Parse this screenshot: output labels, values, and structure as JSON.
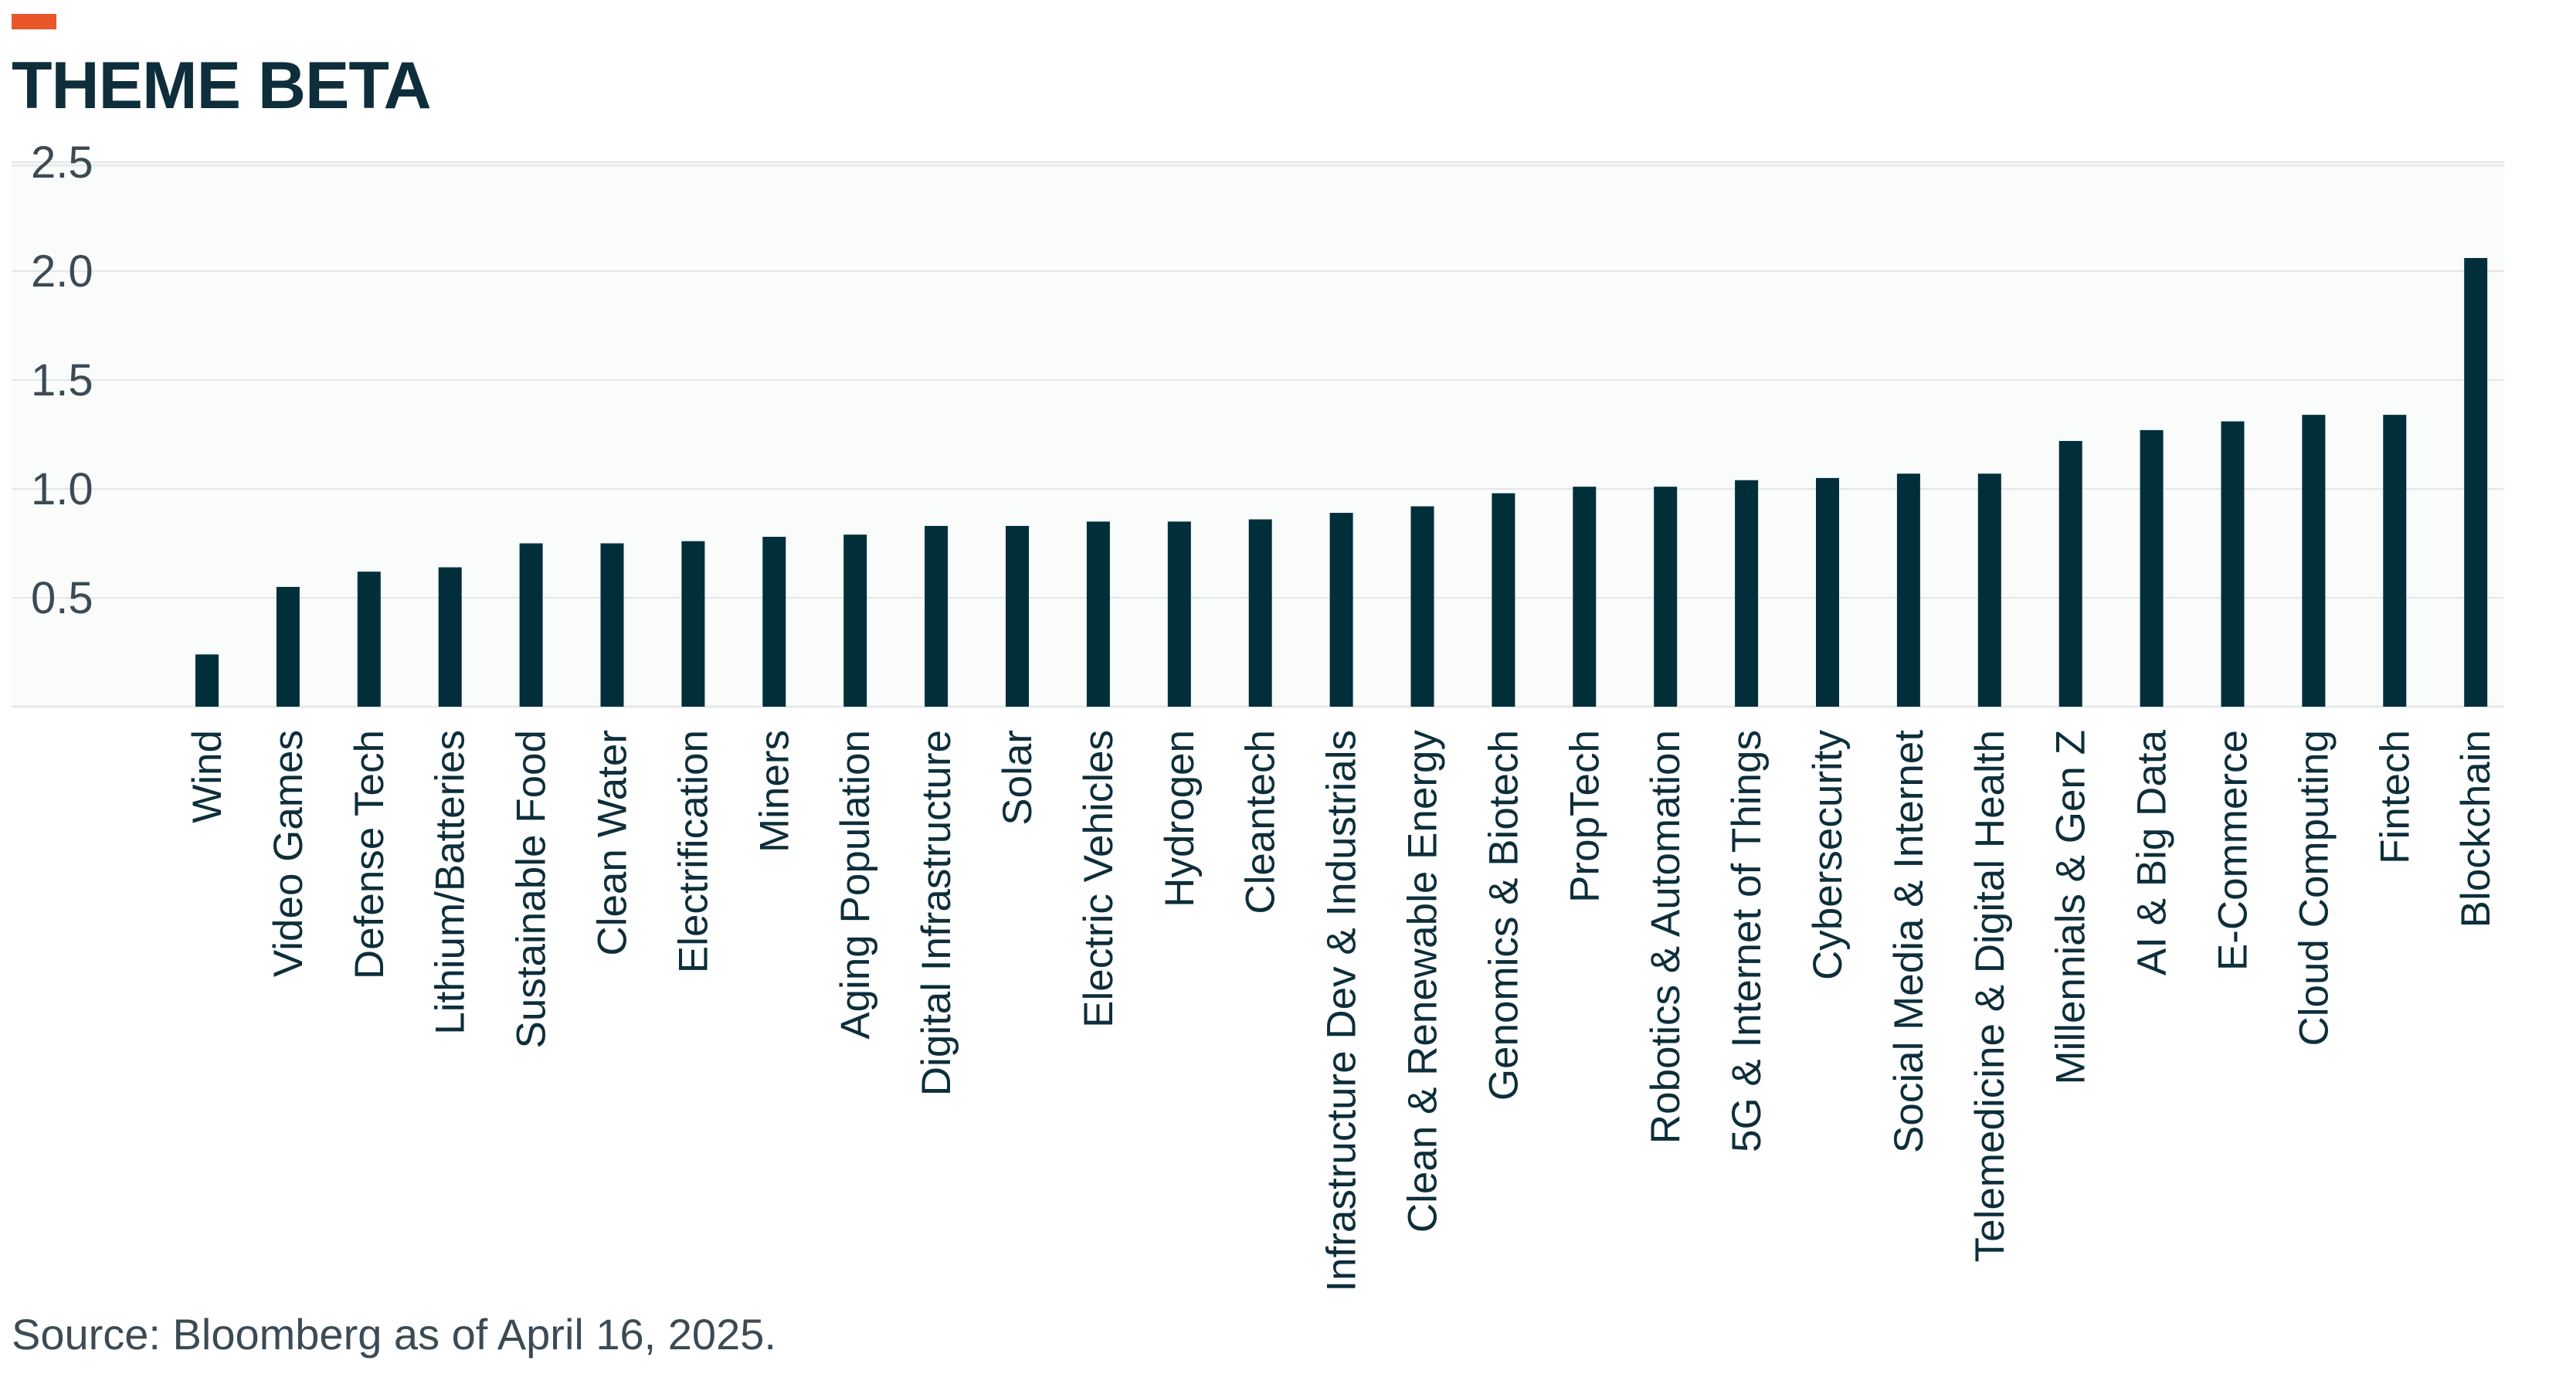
{
  "header": {
    "title": "THEME BETA",
    "accent_color": "#e8572a",
    "title_color": "#0d2e3a"
  },
  "footer": {
    "source": "Source: Bloomberg as of April 16, 2025.",
    "source_color": "#3c4a54"
  },
  "chart_data": {
    "type": "bar",
    "title": "THEME BETA",
    "xlabel": "",
    "ylabel": "",
    "ylim": [
      0.0,
      2.5
    ],
    "yticks": [
      0.5,
      1.0,
      1.5,
      2.0,
      2.5
    ],
    "ytick_labels": [
      "0.5",
      "1.0",
      "1.5",
      "2.0",
      "2.5"
    ],
    "grid": true,
    "legend": "none",
    "bar_color": "#002f3a",
    "categories": [
      "Wind",
      "Video Games",
      "Defense Tech",
      "Lithium/Batteries",
      "Sustainable Food",
      "Clean Water",
      "Electrification",
      "Miners",
      "Aging Population",
      "Digital Infrastructure",
      "Solar",
      "Electric Vehicles",
      "Hydrogen",
      "Cleantech",
      "Infrastructure Dev & Industrials",
      "Clean & Renewable Energy",
      "Genomics & Biotech",
      "PropTech",
      "Robotics & Automation",
      "5G & Internet of Things",
      "Cybersecurity",
      "Social Media & Internet",
      "Telemedicine & Digital Health",
      "Millennials & Gen Z",
      "AI & Big Data",
      "E-Commerce",
      "Cloud Computing",
      "Fintech",
      "Blockchain"
    ],
    "values": [
      0.24,
      0.55,
      0.62,
      0.64,
      0.75,
      0.75,
      0.76,
      0.78,
      0.79,
      0.83,
      0.83,
      0.85,
      0.85,
      0.86,
      0.89,
      0.92,
      0.98,
      1.01,
      1.01,
      1.04,
      1.05,
      1.07,
      1.07,
      1.22,
      1.27,
      1.31,
      1.34,
      1.34,
      2.06
    ]
  }
}
